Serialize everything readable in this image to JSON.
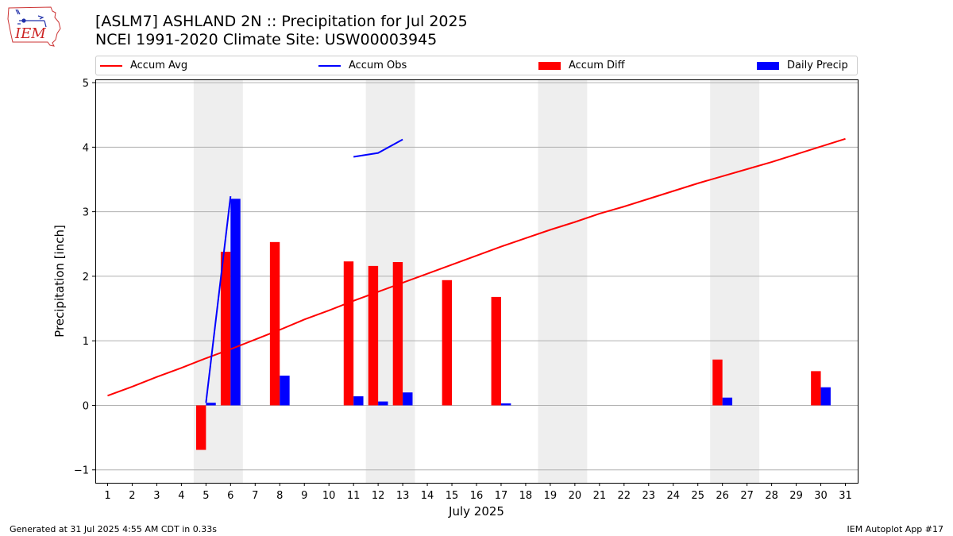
{
  "title": {
    "line1": "[ASLM7] ASHLAND 2N :: Precipitation for Jul 2025",
    "line2": "NCEI 1991-2020 Climate Site: USW00003945"
  },
  "logo": {
    "text": "IEM",
    "icon": "iowa-state-logo-icon"
  },
  "footer": {
    "left": "Generated at 31 Jul 2025 4:55 AM CDT in 0.33s",
    "right": "IEM Autoplot App #17"
  },
  "colors": {
    "avg": "#ff0000",
    "obs": "#0000ff",
    "diff": "#ff0000",
    "daily": "#0000ff",
    "weekend": "#eeeeee",
    "grid": "#b0b0b0"
  },
  "chart_data": {
    "type": "bar",
    "xlabel": "July 2025",
    "ylabel": "Precipitation [inch]",
    "xlim": [
      0.5,
      31.5
    ],
    "ylim": [
      -1.2,
      5.05
    ],
    "yticks": [
      -1,
      0,
      1,
      2,
      3,
      4,
      5
    ],
    "grid": "horizontal",
    "legend_position": "top",
    "days": [
      1,
      2,
      3,
      4,
      5,
      6,
      7,
      8,
      9,
      10,
      11,
      12,
      13,
      14,
      15,
      16,
      17,
      18,
      19,
      20,
      21,
      22,
      23,
      24,
      25,
      26,
      27,
      28,
      29,
      30,
      31
    ],
    "weekend_spans": [
      [
        4.5,
        6.5
      ],
      [
        11.5,
        13.5
      ],
      [
        18.5,
        20.5
      ],
      [
        25.5,
        27.5
      ]
    ],
    "series": [
      {
        "name": "Accum Avg",
        "kind": "line",
        "values": [
          0.15,
          0.29,
          0.44,
          0.58,
          0.73,
          0.87,
          1.02,
          1.17,
          1.33,
          1.47,
          1.62,
          1.76,
          1.9,
          2.04,
          2.18,
          2.32,
          2.46,
          2.59,
          2.72,
          2.84,
          2.97,
          3.08,
          3.2,
          3.32,
          3.44,
          3.55,
          3.66,
          3.77,
          3.89,
          4.01,
          4.13
        ]
      },
      {
        "name": "Accum Obs",
        "kind": "line",
        "points": [
          [
            5,
            0.04
          ],
          [
            6,
            3.24
          ],
          [
            11,
            3.85
          ],
          [
            12,
            3.91
          ],
          [
            13,
            4.12
          ]
        ],
        "segments": [
          [
            0,
            1
          ],
          [
            2,
            3,
            4
          ]
        ]
      },
      {
        "name": "Accum Diff",
        "kind": "bar",
        "values": [
          [
            5,
            -0.69
          ],
          [
            6,
            2.38
          ],
          [
            8,
            2.53
          ],
          [
            11,
            2.23
          ],
          [
            12,
            2.16
          ],
          [
            13,
            2.22
          ],
          [
            15,
            1.94
          ],
          [
            17,
            1.68
          ],
          [
            26,
            0.71
          ],
          [
            30,
            0.53
          ]
        ]
      },
      {
        "name": "Daily Precip",
        "kind": "bar",
        "values": [
          [
            5,
            0.04
          ],
          [
            6,
            3.2
          ],
          [
            8,
            0.46
          ],
          [
            11,
            0.14
          ],
          [
            12,
            0.06
          ],
          [
            13,
            0.2
          ],
          [
            17,
            0.03
          ],
          [
            26,
            0.12
          ],
          [
            30,
            0.28
          ]
        ]
      }
    ]
  }
}
